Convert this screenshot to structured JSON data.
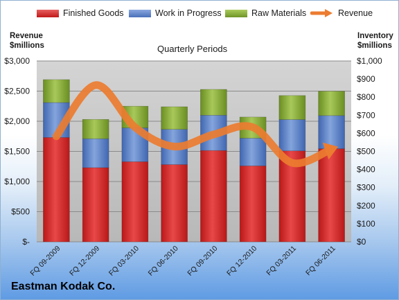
{
  "company": "Eastman Kodak Co.",
  "chart_data": {
    "type": "bar",
    "stacked": true,
    "title": "Quarterly Periods",
    "left_axis_title": [
      "Revenue",
      "$millions"
    ],
    "right_axis_title": [
      "Inventory",
      "$millions"
    ],
    "categories": [
      "FQ 09-2009",
      "FQ 12-2009",
      "FQ 03-2010",
      "FQ 06-2010",
      "FQ 09-2010",
      "FQ 12-2010",
      "FQ 03-2011",
      "FQ 06-2011"
    ],
    "y_left": {
      "min": 0,
      "max": 3000,
      "step": 500,
      "tick_labels": [
        "$-",
        "$500",
        "$1,000",
        "$1,500",
        "$2,000",
        "$2,500",
        "$3,000"
      ]
    },
    "y_right": {
      "min": 0,
      "max": 1000,
      "step": 100,
      "tick_labels": [
        "$0",
        "$100",
        "$200",
        "$300",
        "$400",
        "$500",
        "$600",
        "$700",
        "$800",
        "$900",
        "$1,000"
      ]
    },
    "series": [
      {
        "name": "Finished Goods",
        "axis": "right",
        "color": "#d42a2a",
        "values": [
          577,
          410,
          443,
          427,
          505,
          420,
          503,
          515
        ]
      },
      {
        "name": "Work in Progress",
        "axis": "right",
        "color": "#5a80c8",
        "values": [
          193,
          160,
          187,
          195,
          195,
          153,
          173,
          183
        ]
      },
      {
        "name": "Raw Materials",
        "axis": "right",
        "color": "#8db33a",
        "values": [
          127,
          107,
          120,
          125,
          143,
          117,
          133,
          135
        ]
      },
      {
        "name": "Revenue",
        "axis": "left",
        "type": "line",
        "color": "#ec7c30",
        "values": [
          1750,
          2600,
          1900,
          1580,
          1780,
          1900,
          1310,
          1540
        ]
      }
    ],
    "legend_position": "top",
    "grid": true
  }
}
